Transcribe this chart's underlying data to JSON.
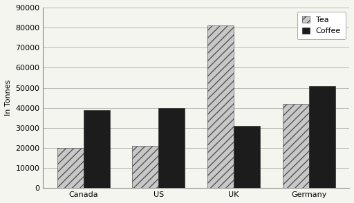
{
  "categories": [
    "Canada",
    "US",
    "UK",
    "Germany"
  ],
  "tea_values": [
    20000,
    21000,
    81000,
    42000
  ],
  "coffee_values": [
    39000,
    40000,
    31000,
    51000
  ],
  "tea_color": "#c8c8c8",
  "tea_hatch": "///",
  "coffee_color": "#1c1c1c",
  "coffee_hatch": "",
  "ylabel": "In Tonnes",
  "ylim": [
    0,
    90000
  ],
  "yticks": [
    0,
    10000,
    20000,
    30000,
    40000,
    50000,
    60000,
    70000,
    80000,
    90000
  ],
  "legend_tea": "Tea",
  "legend_coffee": "Coffee",
  "bar_width": 0.35,
  "background_color": "#f5f5f0",
  "plot_bg_color": "#f5f5f0",
  "grid_color": "#aaaaaa"
}
